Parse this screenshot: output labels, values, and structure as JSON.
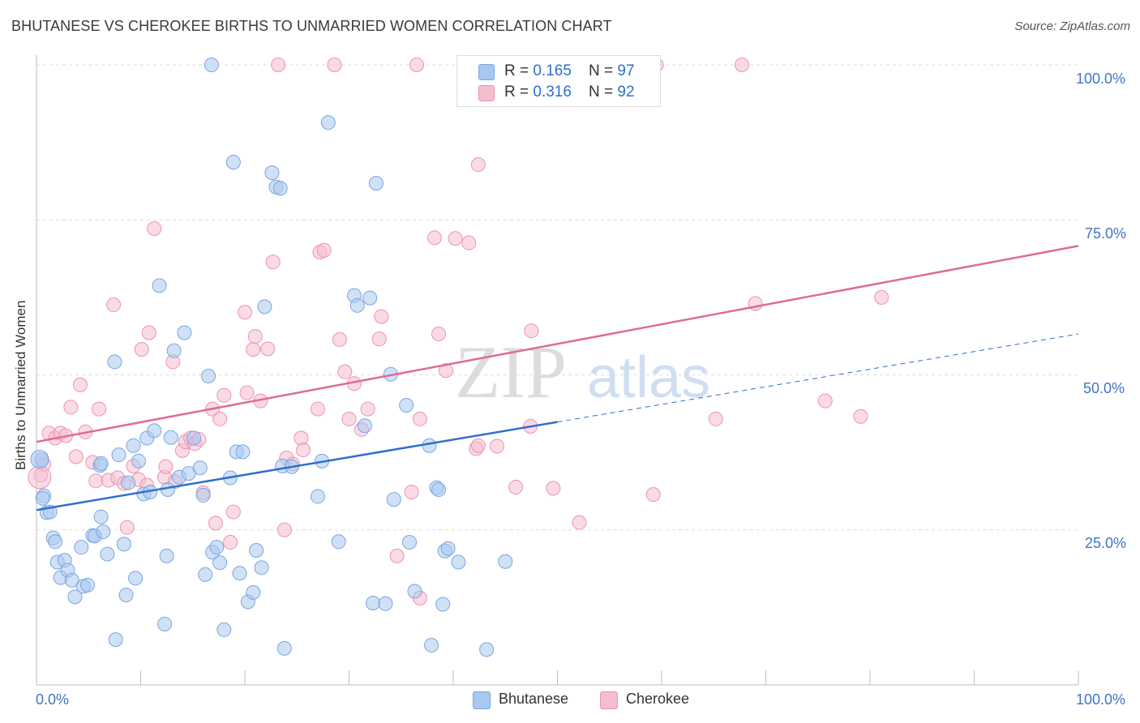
{
  "title": "BHUTANESE VS CHEROKEE BIRTHS TO UNMARRIED WOMEN CORRELATION CHART",
  "source": "Source: ZipAtlas.com",
  "watermark": {
    "zip": "ZIP",
    "atlas": "atlas"
  },
  "colors": {
    "blue_fill": "#a9c8ef",
    "blue_stroke": "#7aa6e0",
    "blue_line": "#2f6fd0",
    "pink_fill": "#f5bdd0",
    "pink_stroke": "#eb93b1",
    "pink_line": "#e06b95",
    "axis_text": "#3f74c8",
    "grid": "#dddddd"
  },
  "legend": {
    "rows": [
      {
        "r_label": "R = ",
        "r_value": "0.165",
        "n_label": "N = ",
        "n_value": "97"
      },
      {
        "r_label": "R = ",
        "r_value": "0.316",
        "n_label": "N = ",
        "n_value": "92"
      }
    ]
  },
  "bottom_legend": {
    "bhutanese": "Bhutanese",
    "cherokee": "Cherokee"
  },
  "x_ticks": {
    "left": "0.0%",
    "right": "100.0%"
  },
  "y_ticks": [
    "100.0%",
    "75.0%",
    "50.0%",
    "25.0%"
  ],
  "chart_data": {
    "type": "scatter",
    "title": "BHUTANESE VS CHEROKEE BIRTHS TO UNMARRIED WOMEN CORRELATION CHART",
    "xlabel": "",
    "ylabel": "Births to Unmarried Women",
    "xlim": [
      0,
      100
    ],
    "ylim": [
      0,
      100
    ],
    "y_tick_values": [
      100,
      75,
      50,
      25
    ],
    "grid": true,
    "legend_position": "top-center",
    "series": [
      {
        "name": "Bhutanese",
        "r": 0.165,
        "n": 97,
        "trend": {
          "x0": 0,
          "y0": 28.2,
          "x1": 100,
          "y1": 56.6,
          "solid_until": 50
        },
        "points": [
          [
            0.5,
            36.3
          ],
          [
            0.7,
            30.5
          ],
          [
            1,
            27.8
          ],
          [
            1.3,
            27.9
          ],
          [
            1.6,
            23.7
          ],
          [
            1.8,
            23.1
          ],
          [
            2,
            19.8
          ],
          [
            2.3,
            17.3
          ],
          [
            2.7,
            20.1
          ],
          [
            3,
            18.5
          ],
          [
            3.4,
            16.9
          ],
          [
            3.7,
            14.2
          ],
          [
            4.5,
            15.9
          ],
          [
            4.9,
            16.1
          ],
          [
            4.3,
            22.2
          ],
          [
            5.4,
            24.1
          ],
          [
            5.6,
            24
          ],
          [
            6.2,
            27.1
          ],
          [
            6.4,
            24.7
          ],
          [
            6.8,
            21.1
          ],
          [
            6.1,
            35.4
          ],
          [
            6.2,
            35.7
          ],
          [
            7.5,
            52.1
          ],
          [
            7.6,
            7.3
          ],
          [
            7.9,
            37.1
          ],
          [
            8.4,
            22.7
          ],
          [
            8.6,
            14.5
          ],
          [
            8.8,
            32.6
          ],
          [
            9.3,
            38.6
          ],
          [
            9.5,
            17.2
          ],
          [
            9.8,
            36.1
          ],
          [
            10.3,
            30.8
          ],
          [
            10.6,
            39.8
          ],
          [
            10.9,
            31.1
          ],
          [
            11.3,
            41
          ],
          [
            11.8,
            64.4
          ],
          [
            12.3,
            9.8
          ],
          [
            12.5,
            20.8
          ],
          [
            12.6,
            31.5
          ],
          [
            12.9,
            39.9
          ],
          [
            13.2,
            53.9
          ],
          [
            13.7,
            33.5
          ],
          [
            14.2,
            56.8
          ],
          [
            14.6,
            34.1
          ],
          [
            15.1,
            39.8
          ],
          [
            15.7,
            35
          ],
          [
            16,
            30.6
          ],
          [
            16.2,
            17.8
          ],
          [
            16.5,
            49.8
          ],
          [
            16.9,
            21.4
          ],
          [
            17.3,
            22.2
          ],
          [
            17.6,
            19.7
          ],
          [
            18,
            8.9
          ],
          [
            18.6,
            33.4
          ],
          [
            18.9,
            84.3
          ],
          [
            19.2,
            37.6
          ],
          [
            19.5,
            18
          ],
          [
            19.8,
            37.6
          ],
          [
            20.3,
            13.4
          ],
          [
            20.8,
            14.9
          ],
          [
            21.1,
            21.7
          ],
          [
            21.6,
            18.9
          ],
          [
            21.9,
            61
          ],
          [
            22.6,
            82.6
          ],
          [
            23,
            80.3
          ],
          [
            23.4,
            80.1
          ],
          [
            23.6,
            35.3
          ],
          [
            23.8,
            5.9
          ],
          [
            24.5,
            35.2
          ],
          [
            27,
            30.4
          ],
          [
            27.4,
            36.1
          ],
          [
            28,
            90.7
          ],
          [
            29,
            23.1
          ],
          [
            30.5,
            62.8
          ],
          [
            30.8,
            61.2
          ],
          [
            31.5,
            41.8
          ],
          [
            32,
            62.4
          ],
          [
            32.3,
            13.2
          ],
          [
            32.6,
            80.9
          ],
          [
            33.5,
            13.1
          ],
          [
            34,
            50.1
          ],
          [
            34.3,
            29.9
          ],
          [
            35.5,
            45.1
          ],
          [
            35.8,
            23
          ],
          [
            36.3,
            15.1
          ],
          [
            37.7,
            38.6
          ],
          [
            37.9,
            6.4
          ],
          [
            38.4,
            31.8
          ],
          [
            38.6,
            31.5
          ],
          [
            39,
            13
          ],
          [
            39.2,
            21.6
          ],
          [
            39.5,
            22
          ],
          [
            40.5,
            19.8
          ],
          [
            43.2,
            5.7
          ],
          [
            45,
            19.9
          ],
          [
            16.8,
            100
          ],
          [
            0.6,
            30.1
          ]
        ]
      },
      {
        "name": "Cherokee",
        "r": 0.316,
        "n": 92,
        "trend": {
          "x0": 0,
          "y0": 39.2,
          "x1": 100,
          "y1": 70.8,
          "solid_until": 100
        },
        "points": [
          [
            0.4,
            33.8
          ],
          [
            0.7,
            35.6
          ],
          [
            1.2,
            40.6
          ],
          [
            1.8,
            39.8
          ],
          [
            2.3,
            40.6
          ],
          [
            2.8,
            40.2
          ],
          [
            3.3,
            44.8
          ],
          [
            3.8,
            36.8
          ],
          [
            4.2,
            48.4
          ],
          [
            4.7,
            40.8
          ],
          [
            5.4,
            35.9
          ],
          [
            5.7,
            32.9
          ],
          [
            6,
            44.5
          ],
          [
            6.9,
            33
          ],
          [
            7.4,
            61.3
          ],
          [
            7.8,
            33.4
          ],
          [
            8.4,
            32.5
          ],
          [
            8.7,
            25.4
          ],
          [
            9.3,
            35.3
          ],
          [
            9.8,
            33.1
          ],
          [
            10.1,
            54.1
          ],
          [
            10.6,
            32.2
          ],
          [
            10.8,
            56.8
          ],
          [
            11.3,
            73.6
          ],
          [
            12.3,
            33.5
          ],
          [
            12.4,
            35.2
          ],
          [
            13.1,
            52.1
          ],
          [
            13.3,
            32.8
          ],
          [
            14,
            37.8
          ],
          [
            14.3,
            39.2
          ],
          [
            14.8,
            39.8
          ],
          [
            15.2,
            38.9
          ],
          [
            15.6,
            39.6
          ],
          [
            16,
            31
          ],
          [
            16.9,
            44.5
          ],
          [
            17.2,
            26.1
          ],
          [
            17.6,
            42.9
          ],
          [
            18,
            46.7
          ],
          [
            18.6,
            23
          ],
          [
            18.9,
            27.9
          ],
          [
            20,
            60.1
          ],
          [
            20.2,
            47.1
          ],
          [
            20.8,
            54.1
          ],
          [
            21,
            56.2
          ],
          [
            21.5,
            45.8
          ],
          [
            22.2,
            54.2
          ],
          [
            22.7,
            68.2
          ],
          [
            24,
            36.6
          ],
          [
            23.8,
            25
          ],
          [
            24.6,
            35.6
          ],
          [
            25.4,
            39.8
          ],
          [
            25.6,
            37.9
          ],
          [
            27,
            44.5
          ],
          [
            27.2,
            69.8
          ],
          [
            27.6,
            70.1
          ],
          [
            29.1,
            55.7
          ],
          [
            29.6,
            50.5
          ],
          [
            30,
            42.9
          ],
          [
            30.5,
            48.6
          ],
          [
            31.2,
            41.2
          ],
          [
            31.8,
            44.5
          ],
          [
            32.9,
            55.8
          ],
          [
            33.1,
            59.4
          ],
          [
            34.6,
            20.8
          ],
          [
            36,
            31.1
          ],
          [
            36.8,
            14
          ],
          [
            36.8,
            42.9
          ],
          [
            38.2,
            72.1
          ],
          [
            38.6,
            56.6
          ],
          [
            39.3,
            50.7
          ],
          [
            40.2,
            72
          ],
          [
            41.5,
            71.3
          ],
          [
            42.2,
            38.1
          ],
          [
            42.4,
            38.6
          ],
          [
            44.2,
            38.5
          ],
          [
            42.4,
            83.9
          ],
          [
            46,
            31.9
          ],
          [
            47.4,
            41.7
          ],
          [
            47.5,
            57.1
          ],
          [
            49.6,
            31.7
          ],
          [
            52.1,
            26.2
          ],
          [
            59.2,
            30.7
          ],
          [
            65.2,
            42.9
          ],
          [
            69,
            61.5
          ],
          [
            75.7,
            45.8
          ],
          [
            79.1,
            43.3
          ],
          [
            81.1,
            62.5
          ],
          [
            23.2,
            100
          ],
          [
            28.6,
            100
          ],
          [
            36.5,
            100
          ],
          [
            59.5,
            100
          ],
          [
            67.7,
            100
          ]
        ]
      }
    ]
  }
}
